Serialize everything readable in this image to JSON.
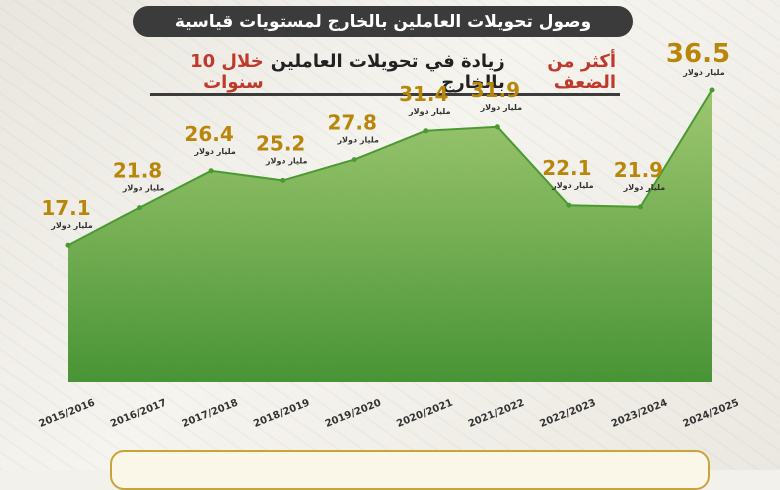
{
  "header": {
    "title": "وصول تحويلات العاملين بالخارج لمستويات قياسية",
    "subtitle_pre": "أكثر من الضعف",
    "subtitle_mid": "زيادة في تحويلات العاملين بالخارج",
    "subtitle_post": "خلال 10 سنوات"
  },
  "colors": {
    "value_gold": "#b8860b",
    "area_green": "#4a9a32",
    "highlight_red": "#c0392b",
    "pill_dark": "#3b3b3b"
  },
  "chart_data": {
    "type": "area",
    "categories": [
      "2015/2016",
      "2016/2017",
      "2017/2018",
      "2018/2019",
      "2019/2020",
      "2020/2021",
      "2021/2022",
      "2022/2023",
      "2023/2024",
      "2024/2025"
    ],
    "values": [
      17.1,
      21.8,
      26.4,
      25.2,
      27.8,
      31.4,
      31.9,
      22.1,
      21.9,
      36.5
    ],
    "unit_label": "مليار دولار",
    "title": "",
    "xlabel": "",
    "ylabel": "",
    "ylim": [
      0,
      38
    ],
    "grid": false
  }
}
